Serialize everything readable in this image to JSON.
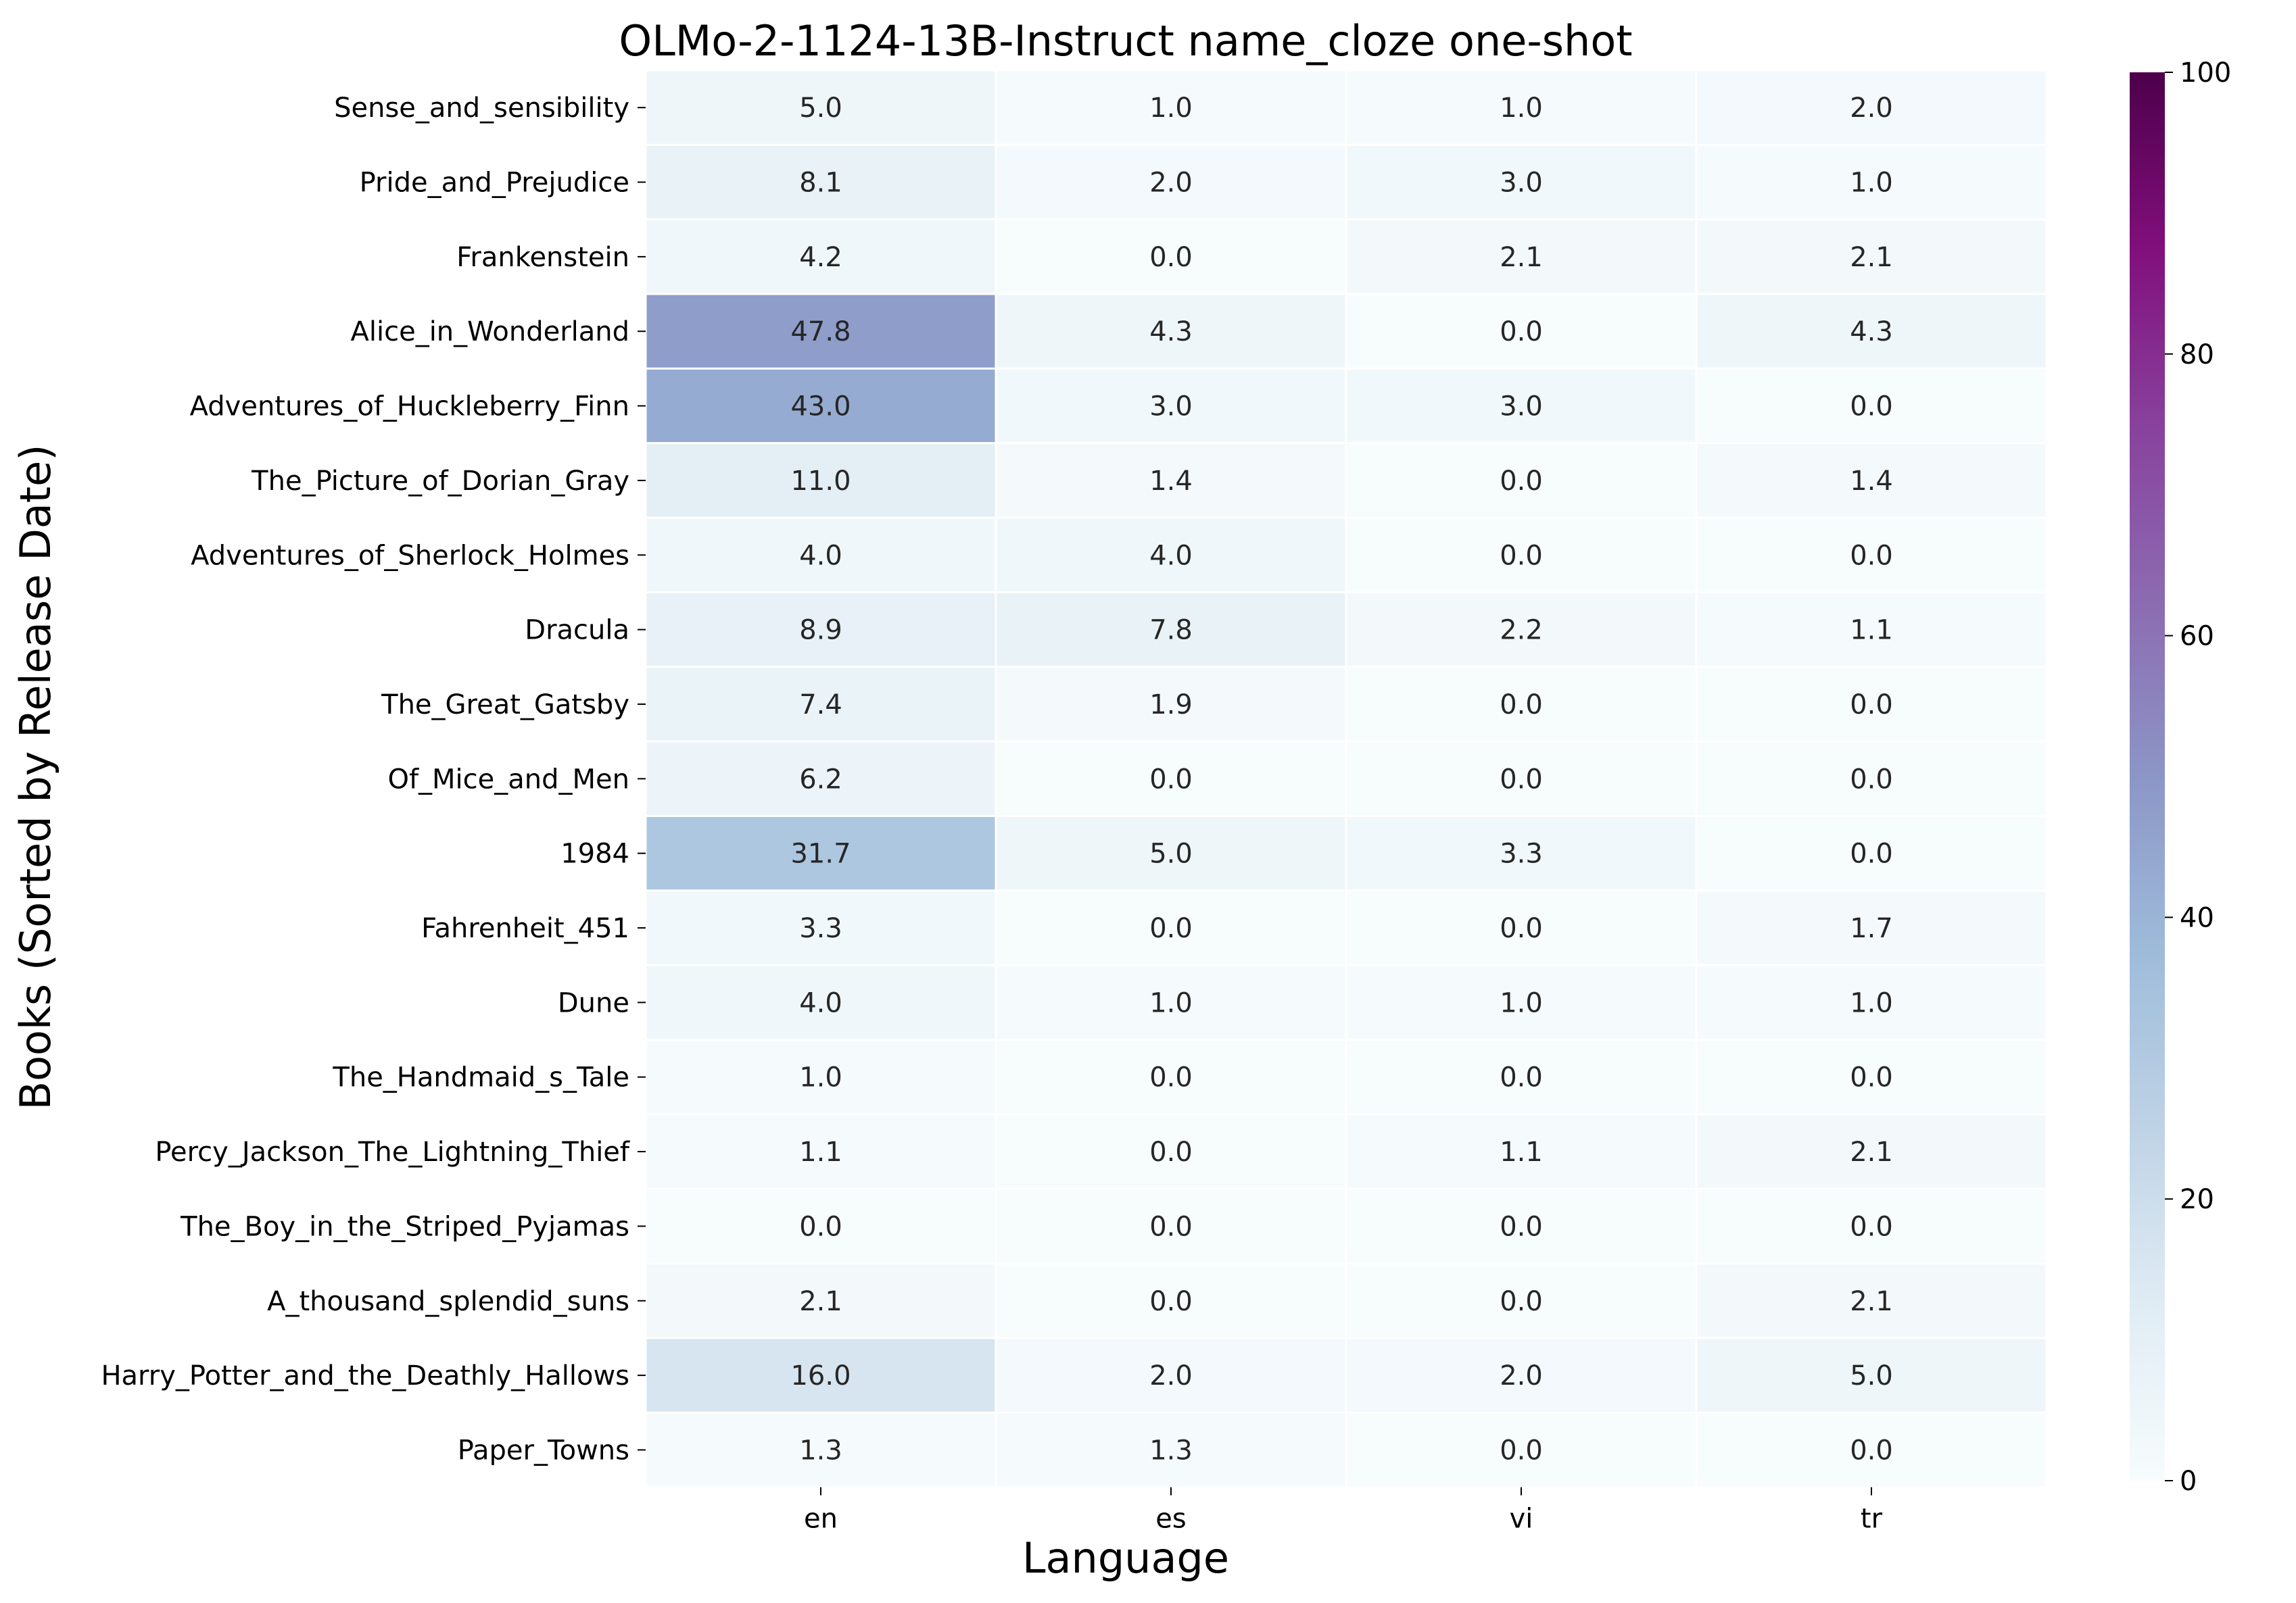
{
  "chart_data": {
    "type": "heatmap",
    "title": "OLMo-2-1124-13B-Instruct name_cloze one-shot",
    "xlabel": "Language",
    "ylabel": "Books (Sorted by Release Date)",
    "x_categories": [
      "en",
      "es",
      "vi",
      "tr"
    ],
    "y_categories": [
      "Sense_and_sensibility",
      "Pride_and_Prejudice",
      "Frankenstein",
      "Alice_in_Wonderland",
      "Adventures_of_Huckleberry_Finn",
      "The_Picture_of_Dorian_Gray",
      "Adventures_of_Sherlock_Holmes",
      "Dracula",
      "The_Great_Gatsby",
      "Of_Mice_and_Men",
      "1984",
      "Fahrenheit_451",
      "Dune",
      "The_Handmaid_s_Tale",
      "Percy_Jackson_The_Lightning_Thief",
      "The_Boy_in_the_Striped_Pyjamas",
      "A_thousand_splendid_suns",
      "Harry_Potter_and_the_Deathly_Hallows",
      "Paper_Towns"
    ],
    "values": [
      [
        5.0,
        1.0,
        1.0,
        2.0
      ],
      [
        8.1,
        2.0,
        3.0,
        1.0
      ],
      [
        4.2,
        0.0,
        2.1,
        2.1
      ],
      [
        47.8,
        4.3,
        0.0,
        4.3
      ],
      [
        43.0,
        3.0,
        3.0,
        0.0
      ],
      [
        11.0,
        1.4,
        0.0,
        1.4
      ],
      [
        4.0,
        4.0,
        0.0,
        0.0
      ],
      [
        8.9,
        7.8,
        2.2,
        1.1
      ],
      [
        7.4,
        1.9,
        0.0,
        0.0
      ],
      [
        6.2,
        0.0,
        0.0,
        0.0
      ],
      [
        31.7,
        5.0,
        3.3,
        0.0
      ],
      [
        3.3,
        0.0,
        0.0,
        1.7
      ],
      [
        4.0,
        1.0,
        1.0,
        1.0
      ],
      [
        1.0,
        0.0,
        0.0,
        0.0
      ],
      [
        1.1,
        0.0,
        1.1,
        2.1
      ],
      [
        0.0,
        0.0,
        0.0,
        0.0
      ],
      [
        2.1,
        0.0,
        0.0,
        2.1
      ],
      [
        16.0,
        2.0,
        2.0,
        5.0
      ],
      [
        1.3,
        1.3,
        0.0,
        0.0
      ]
    ],
    "value_format": "0.0",
    "vmin": 0,
    "vmax": 100,
    "colormap": "BuPu",
    "colorbar_ticks": [
      0,
      20,
      40,
      60,
      80,
      100
    ],
    "grid_line_color": "#ffffff"
  }
}
